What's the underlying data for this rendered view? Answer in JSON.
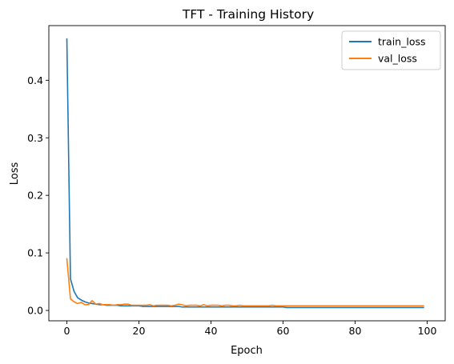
{
  "chart_data": {
    "type": "line",
    "title": "TFT - Training History",
    "xlabel": "Epoch",
    "ylabel": "Loss",
    "xlim": [
      -5,
      105
    ],
    "ylim": [
      -0.018,
      0.495
    ],
    "xticks": [
      0,
      20,
      40,
      60,
      80,
      100
    ],
    "yticks": [
      0.0,
      0.1,
      0.2,
      0.3,
      0.4
    ],
    "xtick_labels": [
      "0",
      "20",
      "40",
      "60",
      "80",
      "100"
    ],
    "ytick_labels": [
      "0.0",
      "0.1",
      "0.2",
      "0.3",
      "0.4"
    ],
    "grid": false,
    "legend_position": "top-right",
    "series": [
      {
        "name": "train_loss",
        "color": "#1f77b4",
        "x": [
          0,
          1,
          2,
          3,
          4,
          5,
          6,
          7,
          8,
          9,
          10,
          11,
          12,
          13,
          14,
          15,
          16,
          17,
          18,
          19,
          20,
          21,
          22,
          23,
          24,
          25,
          26,
          27,
          28,
          29,
          30,
          31,
          32,
          33,
          34,
          35,
          36,
          37,
          38,
          39,
          40,
          41,
          42,
          43,
          44,
          45,
          46,
          47,
          48,
          49,
          50,
          51,
          52,
          53,
          54,
          55,
          56,
          57,
          58,
          59,
          60,
          61,
          62,
          63,
          64,
          65,
          66,
          67,
          68,
          69,
          70,
          71,
          72,
          73,
          74,
          75,
          76,
          77,
          78,
          79,
          80,
          81,
          82,
          83,
          84,
          85,
          86,
          87,
          88,
          89,
          90,
          91,
          92,
          93,
          94,
          95,
          96,
          97,
          98,
          99
        ],
        "values": [
          0.472,
          0.055,
          0.033,
          0.022,
          0.018,
          0.015,
          0.013,
          0.012,
          0.011,
          0.01,
          0.01,
          0.009,
          0.009,
          0.009,
          0.009,
          0.008,
          0.008,
          0.008,
          0.008,
          0.008,
          0.008,
          0.007,
          0.007,
          0.007,
          0.007,
          0.007,
          0.007,
          0.007,
          0.007,
          0.007,
          0.007,
          0.007,
          0.006,
          0.006,
          0.006,
          0.006,
          0.006,
          0.006,
          0.006,
          0.006,
          0.006,
          0.006,
          0.006,
          0.006,
          0.006,
          0.006,
          0.006,
          0.006,
          0.006,
          0.006,
          0.006,
          0.006,
          0.006,
          0.006,
          0.006,
          0.006,
          0.006,
          0.006,
          0.006,
          0.006,
          0.006,
          0.005,
          0.005,
          0.005,
          0.005,
          0.005,
          0.005,
          0.005,
          0.005,
          0.005,
          0.005,
          0.005,
          0.005,
          0.005,
          0.005,
          0.005,
          0.005,
          0.005,
          0.005,
          0.005,
          0.005,
          0.005,
          0.005,
          0.005,
          0.005,
          0.005,
          0.005,
          0.005,
          0.005,
          0.005,
          0.005,
          0.005,
          0.005,
          0.005,
          0.005,
          0.005,
          0.005,
          0.005,
          0.005,
          0.005
        ]
      },
      {
        "name": "val_loss",
        "color": "#ff7f0e",
        "x": [
          0,
          1,
          2,
          3,
          4,
          5,
          6,
          7,
          8,
          9,
          10,
          11,
          12,
          13,
          14,
          15,
          16,
          17,
          18,
          19,
          20,
          21,
          22,
          23,
          24,
          25,
          26,
          27,
          28,
          29,
          30,
          31,
          32,
          33,
          34,
          35,
          36,
          37,
          38,
          39,
          40,
          41,
          42,
          43,
          44,
          45,
          46,
          47,
          48,
          49,
          50,
          51,
          52,
          53,
          54,
          55,
          56,
          57,
          58,
          59,
          60,
          61,
          62,
          63,
          64,
          65,
          66,
          67,
          68,
          69,
          70,
          71,
          72,
          73,
          74,
          75,
          76,
          77,
          78,
          79,
          80,
          81,
          82,
          83,
          84,
          85,
          86,
          87,
          88,
          89,
          90,
          91,
          92,
          93,
          94,
          95,
          96,
          97,
          98,
          99
        ],
        "values": [
          0.09,
          0.02,
          0.015,
          0.012,
          0.014,
          0.01,
          0.01,
          0.017,
          0.011,
          0.012,
          0.01,
          0.01,
          0.01,
          0.009,
          0.01,
          0.01,
          0.011,
          0.011,
          0.009,
          0.009,
          0.009,
          0.009,
          0.009,
          0.01,
          0.008,
          0.009,
          0.009,
          0.009,
          0.009,
          0.008,
          0.009,
          0.011,
          0.01,
          0.008,
          0.009,
          0.009,
          0.009,
          0.008,
          0.01,
          0.008,
          0.009,
          0.009,
          0.009,
          0.008,
          0.009,
          0.009,
          0.008,
          0.008,
          0.009,
          0.008,
          0.008,
          0.008,
          0.008,
          0.008,
          0.008,
          0.008,
          0.008,
          0.009,
          0.008,
          0.008,
          0.008,
          0.008,
          0.008,
          0.008,
          0.008,
          0.008,
          0.008,
          0.008,
          0.008,
          0.008,
          0.008,
          0.008,
          0.008,
          0.008,
          0.008,
          0.008,
          0.008,
          0.008,
          0.008,
          0.008,
          0.008,
          0.008,
          0.008,
          0.008,
          0.008,
          0.008,
          0.008,
          0.008,
          0.008,
          0.008,
          0.008,
          0.008,
          0.008,
          0.008,
          0.008,
          0.008,
          0.008,
          0.008,
          0.008,
          0.008
        ]
      }
    ]
  }
}
